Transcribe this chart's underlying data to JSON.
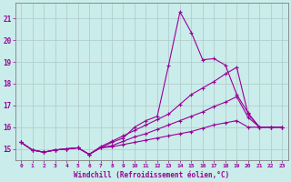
{
  "xlabel": "Windchill (Refroidissement éolien,°C)",
  "background_color": "#caecea",
  "grid_color": "#b0c8c8",
  "line_color": "#990099",
  "xlim": [
    -0.5,
    23.5
  ],
  "ylim": [
    14.5,
    21.7
  ],
  "yticks": [
    15,
    16,
    17,
    18,
    19,
    20,
    21
  ],
  "xticks": [
    0,
    1,
    2,
    3,
    4,
    5,
    6,
    7,
    8,
    9,
    10,
    11,
    12,
    13,
    14,
    15,
    16,
    17,
    18,
    19,
    20,
    21,
    22,
    23
  ],
  "series": [
    [
      15.3,
      14.95,
      14.85,
      14.95,
      15.0,
      15.05,
      14.75,
      15.05,
      15.3,
      15.5,
      16.0,
      16.3,
      16.5,
      18.85,
      21.3,
      20.35,
      19.1,
      19.15,
      18.85,
      17.5,
      16.65,
      16.0,
      16.0,
      16.0
    ],
    [
      15.3,
      14.95,
      14.85,
      14.95,
      15.0,
      15.05,
      14.75,
      15.1,
      15.35,
      15.6,
      15.85,
      16.1,
      16.35,
      16.6,
      17.05,
      17.5,
      17.8,
      18.1,
      18.45,
      18.75,
      16.6,
      16.0,
      16.0,
      16.0
    ],
    [
      15.3,
      14.95,
      14.85,
      14.95,
      15.0,
      15.05,
      14.75,
      15.05,
      15.15,
      15.35,
      15.55,
      15.7,
      15.9,
      16.1,
      16.3,
      16.5,
      16.7,
      16.95,
      17.15,
      17.4,
      16.45,
      16.0,
      16.0,
      16.0
    ],
    [
      15.3,
      14.95,
      14.85,
      14.95,
      15.0,
      15.05,
      14.75,
      15.05,
      15.1,
      15.2,
      15.3,
      15.4,
      15.5,
      15.6,
      15.7,
      15.8,
      15.95,
      16.1,
      16.2,
      16.3,
      16.0,
      16.0,
      16.0,
      16.0
    ]
  ]
}
